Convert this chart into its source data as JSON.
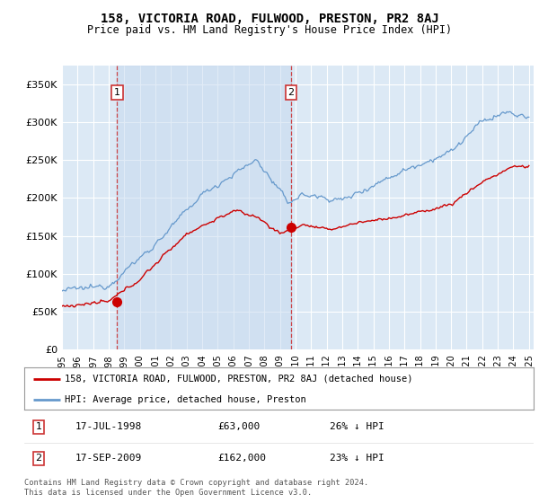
{
  "title": "158, VICTORIA ROAD, FULWOOD, PRESTON, PR2 8AJ",
  "subtitle": "Price paid vs. HM Land Registry's House Price Index (HPI)",
  "legend_label_red": "158, VICTORIA ROAD, FULWOOD, PRESTON, PR2 8AJ (detached house)",
  "legend_label_blue": "HPI: Average price, detached house, Preston",
  "footnote": "Contains HM Land Registry data © Crown copyright and database right 2024.\nThis data is licensed under the Open Government Licence v3.0.",
  "table_rows": [
    {
      "num": "1",
      "date": "17-JUL-1998",
      "price": "£63,000",
      "hpi": "26% ↓ HPI"
    },
    {
      "num": "2",
      "date": "17-SEP-2009",
      "price": "£162,000",
      "hpi": "23% ↓ HPI"
    }
  ],
  "purchase_points": [
    {
      "year": 1998.54,
      "value": 63000,
      "label": "1"
    },
    {
      "year": 2009.71,
      "value": 162000,
      "label": "2"
    }
  ],
  "vline_years": [
    1998.54,
    2009.71
  ],
  "ylim": [
    0,
    375000
  ],
  "yticks": [
    0,
    50000,
    100000,
    150000,
    200000,
    250000,
    300000,
    350000
  ],
  "ytick_labels": [
    "£0",
    "£50K",
    "£100K",
    "£150K",
    "£200K",
    "£250K",
    "£300K",
    "£350K"
  ],
  "background_color": "#dce9f5",
  "grid_color": "#ffffff",
  "red_color": "#cc0000",
  "blue_color": "#6699cc",
  "box_color": "#cc3333",
  "shade_color": "#c5d8ee"
}
